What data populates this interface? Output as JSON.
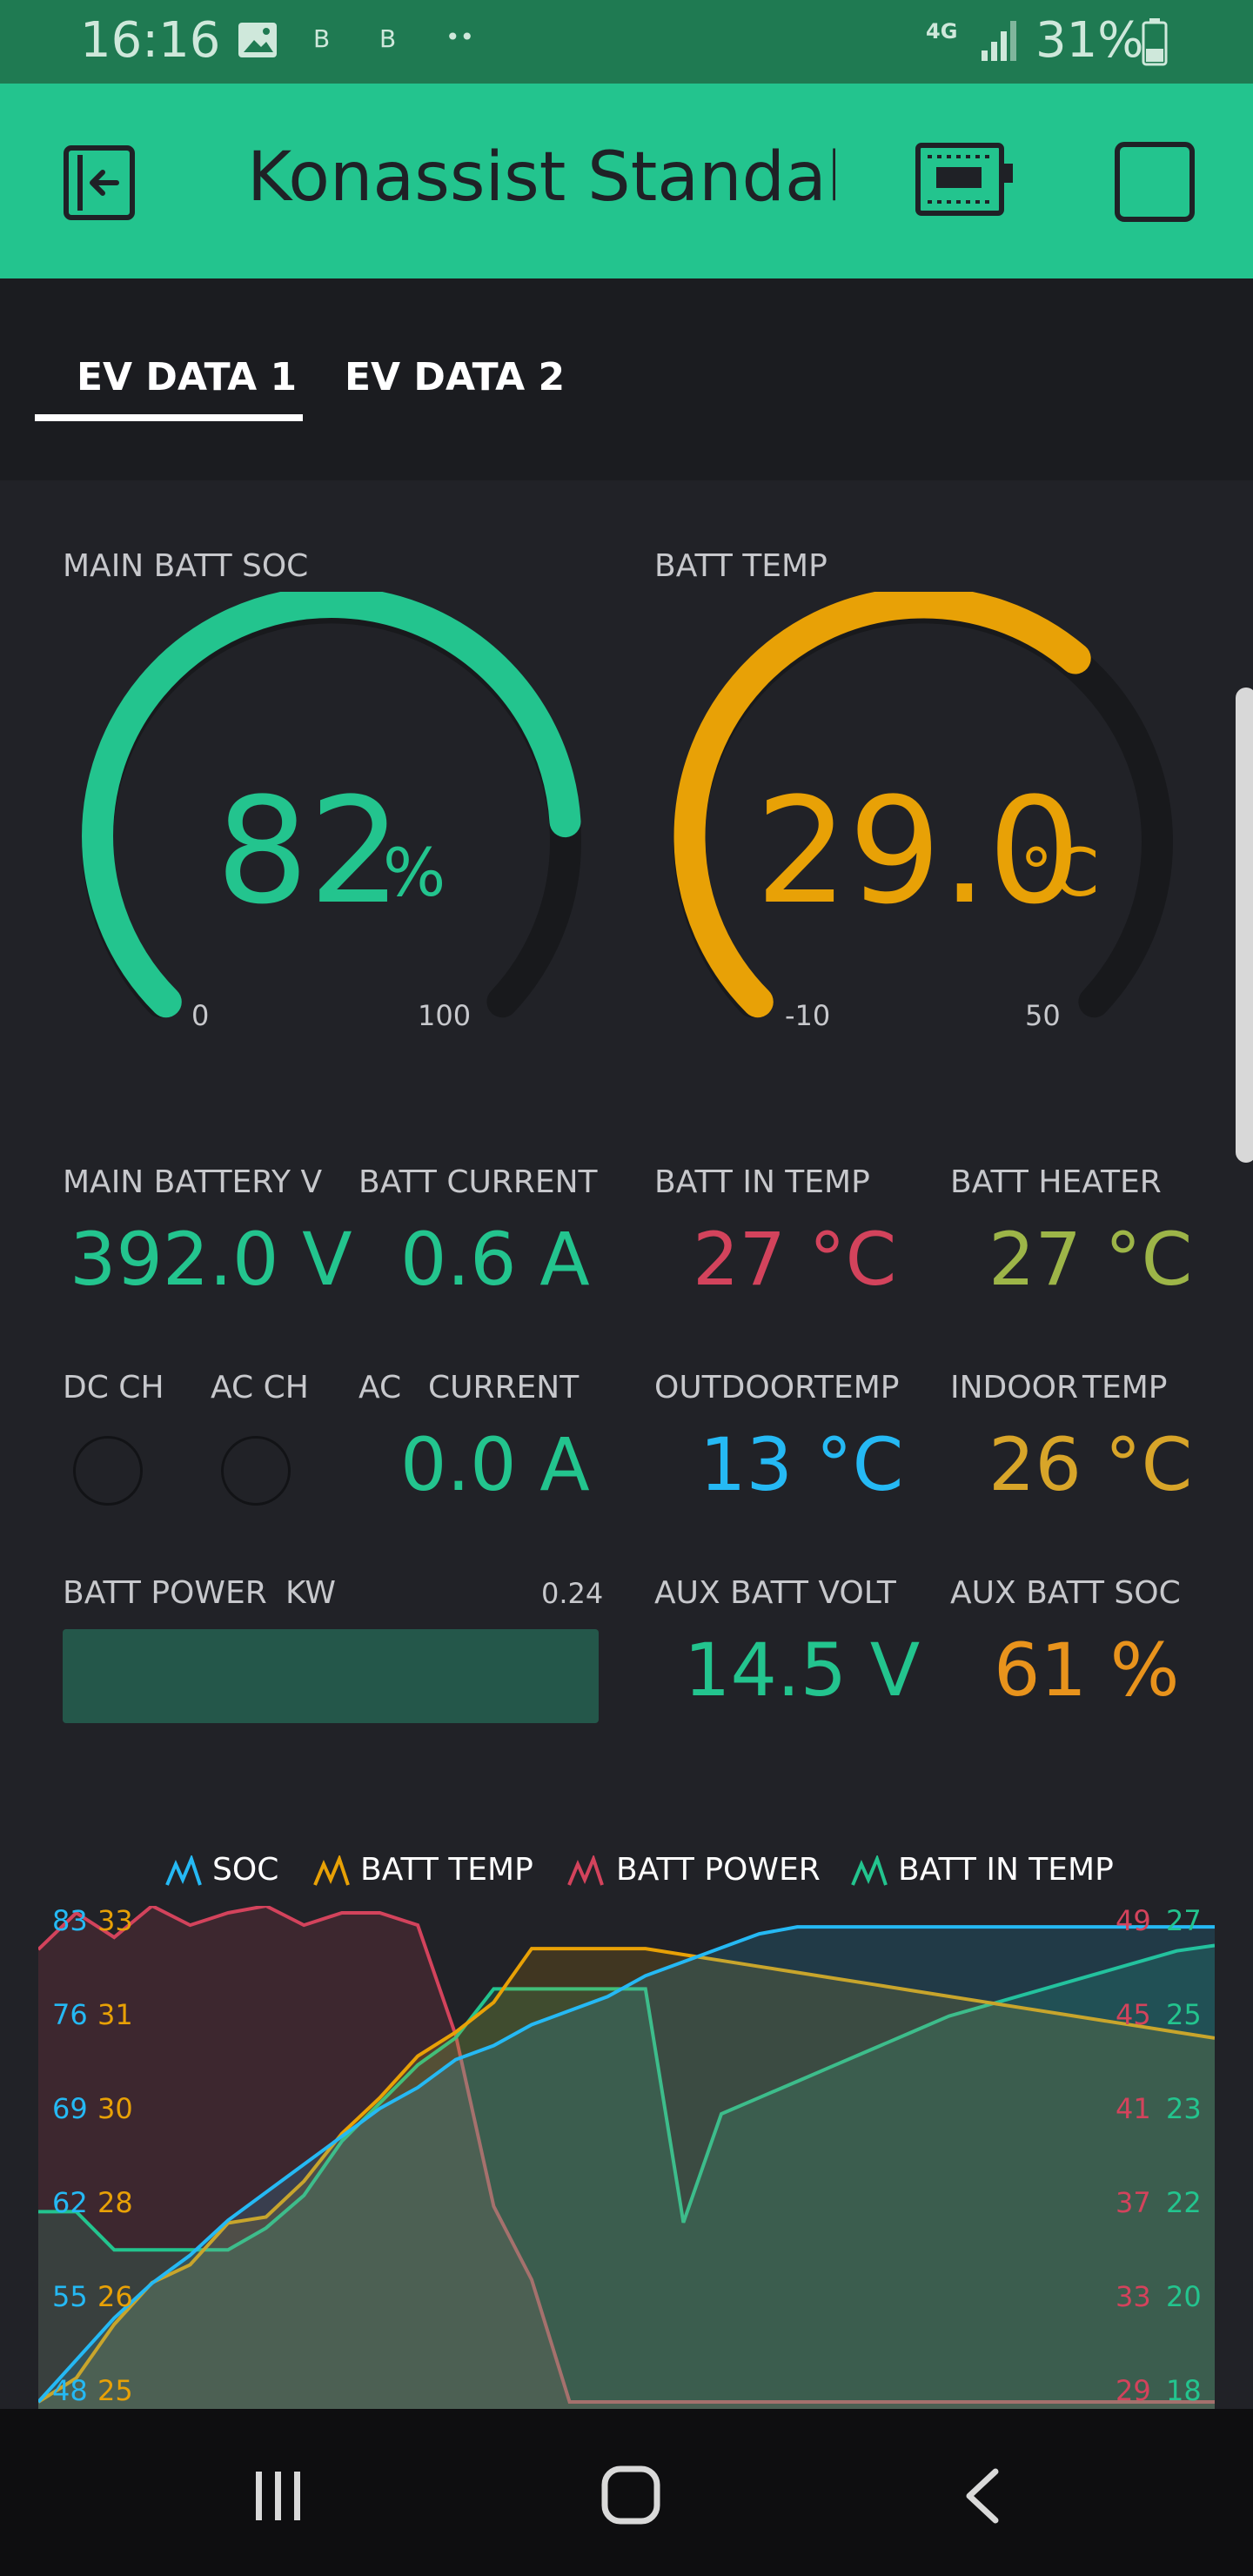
{
  "status_bar": {
    "time": "16:16",
    "small_icons": [
      "B",
      "B",
      "••"
    ],
    "network": "4G",
    "battery_percent": "31%",
    "icons": [
      "image-icon",
      "signal-icon",
      "battery-icon"
    ]
  },
  "app_bar": {
    "title": "Konassist Standalon",
    "icons": [
      "exit-icon",
      "device-icon",
      "stop-icon"
    ]
  },
  "tabs": [
    {
      "label": "EV DATA 1",
      "active": true
    },
    {
      "label": "EV DATA 2",
      "active": false
    }
  ],
  "gauges": {
    "soc": {
      "label": "MAIN BATT SOC",
      "value": "82",
      "unit": "%",
      "min": "0",
      "max": "100",
      "color": "#23c48e"
    },
    "temp": {
      "label": "BATT TEMP",
      "value": "29.0",
      "unit": "°C",
      "min": "-10",
      "max": "50",
      "color": "#e8a106"
    }
  },
  "values": {
    "main_battery_v": {
      "label": "MAIN BATTERY V",
      "value": "392.0 V",
      "color": "#23c48e"
    },
    "batt_current": {
      "label": "BATT CURRENT",
      "value": "0.6 A",
      "color": "#23c48e"
    },
    "batt_in_temp": {
      "label": "BATT IN TEMP",
      "value": "27 °C",
      "color": "#d3435c"
    },
    "batt_heater": {
      "label": "BATT HEATER",
      "value": "27 °C",
      "color": "#9db548"
    },
    "dc_ch": {
      "label": "DC CH"
    },
    "ac_ch": {
      "label": "AC CH"
    },
    "ac_current": {
      "label_a": "AC",
      "label_b": "CURRENT",
      "value": "0.0 A",
      "color": "#23c48e"
    },
    "outdoor_temp": {
      "label_a": "OUTDOOR",
      "label_b": "TEMP",
      "value": "13 °C",
      "color": "#25b9f4"
    },
    "indoor_temp": {
      "label_a": "INDOOR",
      "label_b": "TEMP",
      "value": "26 °C",
      "color": "#d8a529"
    },
    "batt_power": {
      "label_a": "BATT POWER",
      "label_b": "KW",
      "value": "0.24",
      "fill": 1.0
    },
    "aux_batt_volt": {
      "label": "AUX BATT VOLT",
      "value": "14.5 V",
      "color": "#23c48e"
    },
    "aux_batt_soc": {
      "label": "AUX BATT SOC",
      "value": "61 %",
      "color": "#e8931c"
    }
  },
  "chart_data": {
    "type": "line",
    "legend": [
      {
        "name": "SOC",
        "color": "#25b9f4"
      },
      {
        "name": "BATT TEMP",
        "color": "#e8a106"
      },
      {
        "name": "BATT POWER",
        "color": "#d3435c"
      },
      {
        "name": "BATT IN TEMP",
        "color": "#23c48e"
      }
    ],
    "y_axes": {
      "left_soc": [
        "83",
        "76",
        "69",
        "62",
        "55",
        "48"
      ],
      "left_batt_temp": [
        "33",
        "31",
        "30",
        "28",
        "26",
        "25"
      ],
      "right_batt_power": [
        "49",
        "45",
        "41",
        "37",
        "33",
        "29"
      ],
      "right_batt_in_temp": [
        "27",
        "25",
        "23",
        "22",
        "20",
        "18"
      ]
    },
    "series": [
      {
        "name": "SOC",
        "y_range": [
          48,
          83
        ],
        "values": [
          48,
          51,
          54,
          56.5,
          58.5,
          61,
          63,
          65,
          67,
          69,
          70.5,
          72.5,
          73.5,
          75,
          76,
          77,
          78.5,
          79.5,
          80.5,
          81.5,
          82,
          82,
          82,
          82,
          82,
          82,
          82,
          82,
          82,
          82,
          82,
          82
        ]
      },
      {
        "name": "BATT TEMP",
        "y_range": [
          24.8,
          33
        ],
        "values": [
          24.8,
          25.2,
          26.1,
          26.8,
          27.1,
          27.8,
          27.9,
          28.5,
          29.3,
          29.9,
          30.6,
          31,
          31.5,
          32.4,
          32.4,
          32.4,
          32.4,
          32.3,
          32.2,
          32.1,
          32.0,
          31.9,
          31.8,
          31.7,
          31.6,
          31.5,
          31.4,
          31.3,
          31.2,
          31.1,
          31.0,
          30.9
        ]
      },
      {
        "name": "BATT POWER",
        "y_range": [
          29,
          49
        ],
        "values": [
          47.5,
          49,
          48,
          49.5,
          48.5,
          49,
          49.5,
          48.5,
          49,
          49,
          48.5,
          44,
          37,
          34,
          29,
          29,
          29,
          29,
          29,
          29,
          29,
          29,
          29,
          29,
          29,
          29,
          29,
          29,
          29,
          29,
          29,
          29
        ]
      },
      {
        "name": "BATT IN TEMP",
        "y_range": [
          18,
          27
        ],
        "values": [
          21.5,
          21.5,
          20.8,
          20.8,
          20.8,
          20.8,
          21.2,
          21.8,
          22.8,
          23.5,
          24.2,
          24.7,
          25.6,
          25.6,
          25.6,
          25.6,
          25.6,
          21.3,
          23.3,
          23.6,
          23.9,
          24.2,
          24.5,
          24.8,
          25.1,
          25.3,
          25.5,
          25.7,
          25.9,
          26.1,
          26.3,
          26.4
        ]
      }
    ]
  },
  "nav_bar": {
    "icons": [
      "recents-icon",
      "home-icon",
      "back-icon"
    ]
  }
}
